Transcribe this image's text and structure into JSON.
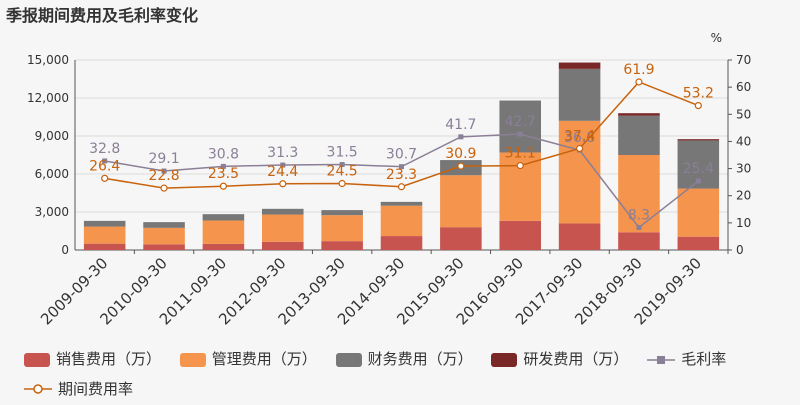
{
  "title": "季报期间费用及毛利率变化",
  "chart_data": {
    "type": "bar",
    "stacked": true,
    "categories": [
      "2009-09-30",
      "2010-09-30",
      "2011-09-30",
      "2012-09-30",
      "2013-09-30",
      "2014-09-30",
      "2015-09-30",
      "2016-09-30",
      "2017-09-30",
      "2018-09-30",
      "2019-09-30"
    ],
    "right_axis_unit": "%",
    "ylim_left": [
      0,
      15000
    ],
    "yticks_left": [
      "0",
      "3,000",
      "6,000",
      "9,000",
      "12,000",
      "15,000"
    ],
    "ylim_right": [
      0,
      70
    ],
    "yticks_right": [
      "0",
      "10",
      "20",
      "30",
      "40",
      "50",
      "60",
      "70"
    ],
    "series": [
      {
        "name": "销售费用（万）",
        "kind": "bar",
        "color": "#c85450",
        "values": [
          500,
          450,
          480,
          650,
          700,
          1100,
          1800,
          2300,
          2100,
          1400,
          1050
        ]
      },
      {
        "name": "管理费用（万）",
        "kind": "bar",
        "color": "#f5944c",
        "values": [
          1350,
          1300,
          1850,
          2150,
          2050,
          2400,
          4100,
          5400,
          8100,
          6100,
          3800
        ]
      },
      {
        "name": "财务费用（万）",
        "kind": "bar",
        "color": "#777777",
        "values": [
          450,
          450,
          500,
          450,
          400,
          300,
          1200,
          4100,
          4100,
          3100,
          3800
        ]
      },
      {
        "name": "研发费用（万）",
        "kind": "bar",
        "color": "#7a2727",
        "values": [
          0,
          0,
          0,
          0,
          0,
          0,
          0,
          0,
          500,
          200,
          100
        ]
      },
      {
        "name": "毛利率",
        "kind": "line",
        "axis": "right",
        "color": "#8a7f96",
        "values": [
          32.8,
          29.1,
          30.8,
          31.3,
          31.5,
          30.7,
          41.7,
          42.7,
          36.8,
          8.3,
          25.4
        ],
        "labels": [
          "32.8",
          "29.1",
          "30.8",
          "31.3",
          "31.5",
          "30.7",
          "41.7",
          "42.7",
          "36.8",
          "8.3",
          "25.4"
        ]
      },
      {
        "name": "期间费用率",
        "kind": "line",
        "axis": "right",
        "color": "#c8620c",
        "values": [
          26.4,
          22.8,
          23.5,
          24.4,
          24.5,
          23.3,
          30.9,
          31.1,
          37.4,
          61.9,
          53.2
        ],
        "labels": [
          "26.4",
          "22.8",
          "23.5",
          "24.4",
          "24.5",
          "23.3",
          "30.9",
          "31.1",
          "37.4",
          "61.9",
          "53.2"
        ]
      }
    ],
    "grid": true,
    "legend_position": "bottom"
  }
}
